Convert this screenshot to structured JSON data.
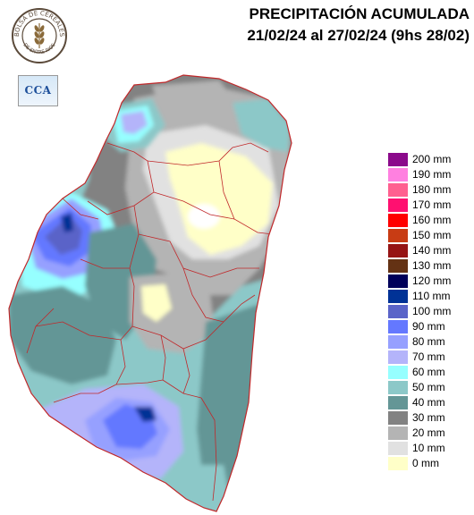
{
  "header": {
    "title": "PRECIPITACIÓN ACUMULADA",
    "period": "21/02/24 al 27/02/24 (9hs 28/02)"
  },
  "logos": {
    "seal_text": "BOLSA DE CEREALES DE ENTRE RIOS",
    "cca_text": "CCA"
  },
  "legend": [
    {
      "label": "200 mm",
      "color": "#8b0a8b"
    },
    {
      "label": "190 mm",
      "color": "#ff80e0"
    },
    {
      "label": "180 mm",
      "color": "#ff6090"
    },
    {
      "label": "170 mm",
      "color": "#ff1070"
    },
    {
      "label": "160 mm",
      "color": "#ff0000"
    },
    {
      "label": "150 mm",
      "color": "#c83c14"
    },
    {
      "label": "140 mm",
      "color": "#961414"
    },
    {
      "label": "130 mm",
      "color": "#643214"
    },
    {
      "label": "120 mm",
      "color": "#00005a"
    },
    {
      "label": "110 mm",
      "color": "#003296"
    },
    {
      "label": "100 mm",
      "color": "#5a64c8"
    },
    {
      "label": "90 mm",
      "color": "#6478ff"
    },
    {
      "label": "80 mm",
      "color": "#96a0ff"
    },
    {
      "label": "70 mm",
      "color": "#b4b4fa"
    },
    {
      "label": "60 mm",
      "color": "#96ffff"
    },
    {
      "label": "50 mm",
      "color": "#8cc8c8"
    },
    {
      "label": "40 mm",
      "color": "#649696"
    },
    {
      "label": "30 mm",
      "color": "#828282"
    },
    {
      "label": "20 mm",
      "color": "#b4b4b4"
    },
    {
      "label": "10 mm",
      "color": "#e1e1e1"
    },
    {
      "label": "0 mm",
      "color": "#ffffc8"
    }
  ]
}
